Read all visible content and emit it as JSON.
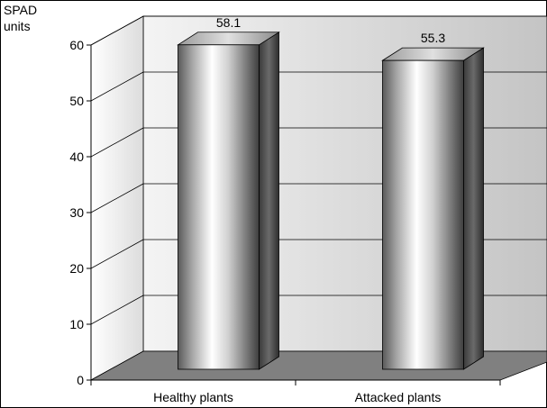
{
  "chart_data": {
    "type": "bar",
    "categories": [
      "Healthy plants",
      "Attacked plants"
    ],
    "values": [
      58.1,
      55.3
    ],
    "data_labels": [
      "58.1",
      "55.3"
    ],
    "title": "",
    "xlabel": "",
    "ylabel_lines": [
      "SPAD",
      "units"
    ],
    "ylim": [
      0,
      60
    ],
    "yticks": [
      "0",
      "10",
      "20",
      "30",
      "40",
      "50",
      "60"
    ],
    "grid": true,
    "style": "3d-cylinder-bars",
    "colors": {
      "bar_light": "#ffffff",
      "bar_dark": "#4a4a4a",
      "floor": "#808080",
      "back_wall_light": "#f0f0f0",
      "back_wall_dark": "#c8c8c8"
    }
  }
}
